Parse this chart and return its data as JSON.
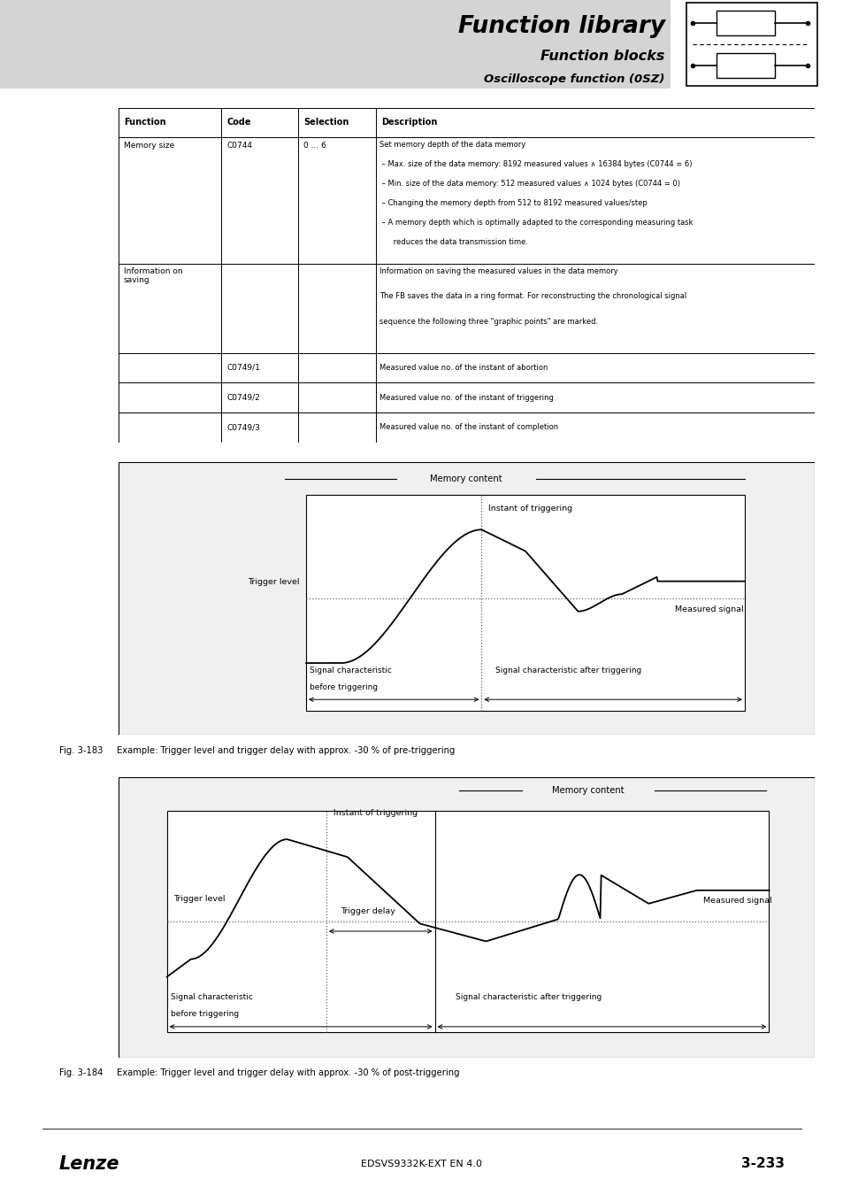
{
  "title": "Function library",
  "subtitle": "Function blocks",
  "subtitle2": "Oscilloscope function (0SZ)",
  "bg_color": "#ffffff",
  "header_bg": "#d8d8d8",
  "table_headers": [
    "Function",
    "Code",
    "Selection",
    "Description"
  ],
  "fig183_caption": "Fig. 3-183     Example: Trigger level and trigger delay with approx. -30 % of pre-triggering",
  "fig184_caption": "Fig. 3-184     Example: Trigger level and trigger delay with approx. -30 % of post-triggering",
  "footer_left": "Lenze",
  "footer_center": "EDSVS9332K-EXT EN 4.0",
  "footer_right": "3-233"
}
